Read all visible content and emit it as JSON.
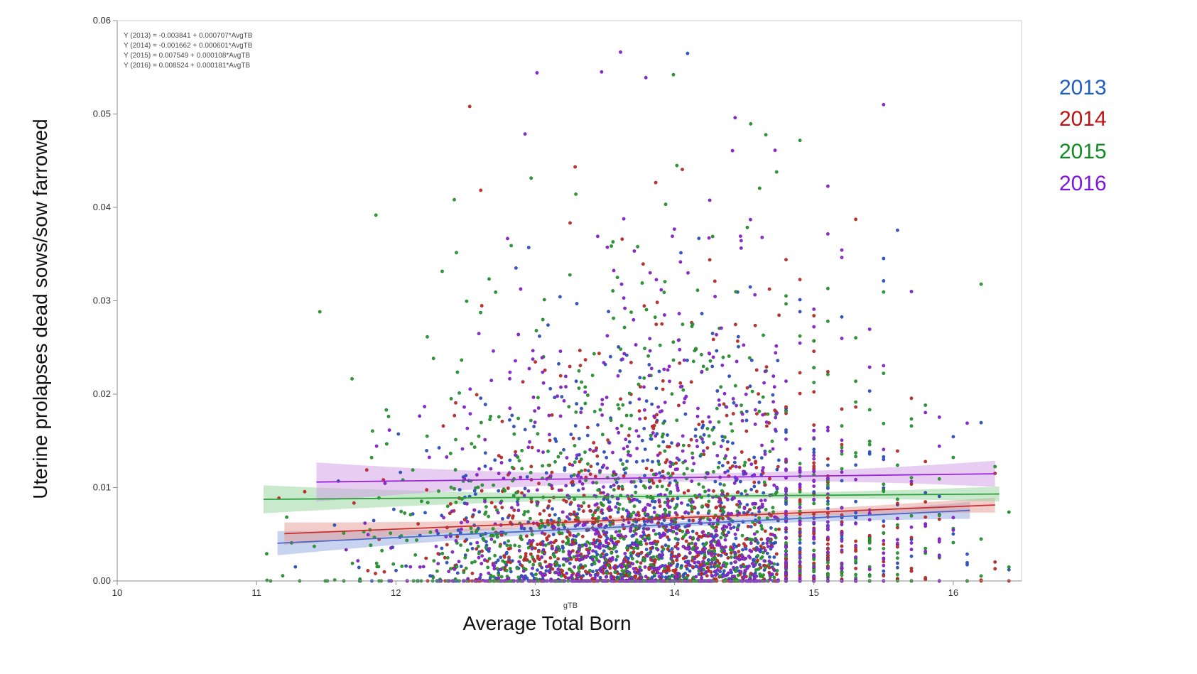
{
  "figure": {
    "background": "#ffffff",
    "plot_border_color": "#cccccc",
    "axis_color": "#8c8c8c",
    "tick_label_color": "#2f2f2f",
    "axis_title_color": "#111111",
    "annotation_color": "#4a4a4a"
  },
  "chart_data": {
    "type": "scatter",
    "title": "",
    "xlabel": "Average Total Born",
    "x_sub_label": "gTB",
    "ylabel": "Uterine prolapses dead sows/sow farrowed",
    "xlim": [
      10,
      16.49
    ],
    "ylim": [
      0,
      0.06
    ],
    "x_ticks": [
      10,
      11,
      12,
      13,
      14,
      15,
      16
    ],
    "y_ticks": [
      "0.00",
      "0.01",
      "0.02",
      "0.03",
      "0.04",
      "0.05",
      "0.06"
    ],
    "grid": false,
    "legend_position": "right-top",
    "point_radius": 2.1,
    "x_point_range": [
      11.05,
      16.42
    ],
    "y_point_max": 0.0585,
    "x_quantize": {
      "from": 14.75,
      "step": 0.1
    },
    "series": [
      {
        "name": "2013",
        "colors": {
          "legend": "#1d5fc4",
          "line": "#4b69c8",
          "point": "#3558c4",
          "point_edge": "#2646a6",
          "band": "#8fa7e0"
        },
        "fit": {
          "equation": "Y (2013) = -0.003841 + 0.000707*AvgTB",
          "intercept": -0.003841,
          "slope": 0.000707,
          "x_range": [
            11.15,
            16.12
          ],
          "band_halfwidth_left_mid_right": [
            0.0013,
            0.0003,
            0.0009
          ]
        },
        "scatter": {
          "n": 950,
          "seed": 101,
          "x_mean": 13.9,
          "x_sd": 0.85,
          "y_exp_mean": 0.0068,
          "zero_fraction": 0.16
        }
      },
      {
        "name": "2014",
        "colors": {
          "legend": "#bf1212",
          "line": "#cc2e2e",
          "point": "#c23430",
          "point_edge": "#9c201e",
          "band": "#e39a94"
        },
        "fit": {
          "equation": "Y (2014) = -0.001662 + 0.000601*AvgTB",
          "intercept": -0.001662,
          "slope": 0.000601,
          "x_range": [
            11.2,
            16.3
          ],
          "band_halfwidth_left_mid_right": [
            0.0012,
            0.00028,
            0.0008
          ]
        },
        "scatter": {
          "n": 950,
          "seed": 202,
          "x_mean": 13.9,
          "x_sd": 0.88,
          "y_exp_mean": 0.0074,
          "zero_fraction": 0.16
        }
      },
      {
        "name": "2015",
        "colors": {
          "legend": "#118a22",
          "line": "#2f9e3f",
          "point": "#2e9b38",
          "point_edge": "#1e7a26",
          "band": "#94d49c"
        },
        "fit": {
          "equation": "Y (2015) = 0.007549 + 0.000108*AvgTB",
          "intercept": 0.007549,
          "slope": 0.000108,
          "x_range": [
            11.05,
            16.33
          ],
          "band_halfwidth_left_mid_right": [
            0.0015,
            0.0003,
            0.0008
          ]
        },
        "scatter": {
          "n": 950,
          "seed": 303,
          "x_mean": 13.78,
          "x_sd": 1.02,
          "y_exp_mean": 0.0088,
          "zero_fraction": 0.15
        }
      },
      {
        "name": "2016",
        "colors": {
          "legend": "#7e17dd",
          "line": "#9a27d5",
          "point": "#8e2bd0",
          "point_edge": "#6f1cab",
          "band": "#cf9ce6"
        },
        "fit": {
          "equation": "Y (2016) = 0.008524 + 0.000181*AvgTB",
          "intercept": 0.008524,
          "slope": 0.000181,
          "x_range": [
            11.43,
            16.3
          ],
          "band_halfwidth_left_mid_right": [
            0.0021,
            0.00045,
            0.0014
          ]
        },
        "scatter": {
          "n": 950,
          "seed": 404,
          "x_mean": 13.95,
          "x_sd": 0.8,
          "y_exp_mean": 0.0096,
          "zero_fraction": 0.15
        }
      }
    ]
  }
}
